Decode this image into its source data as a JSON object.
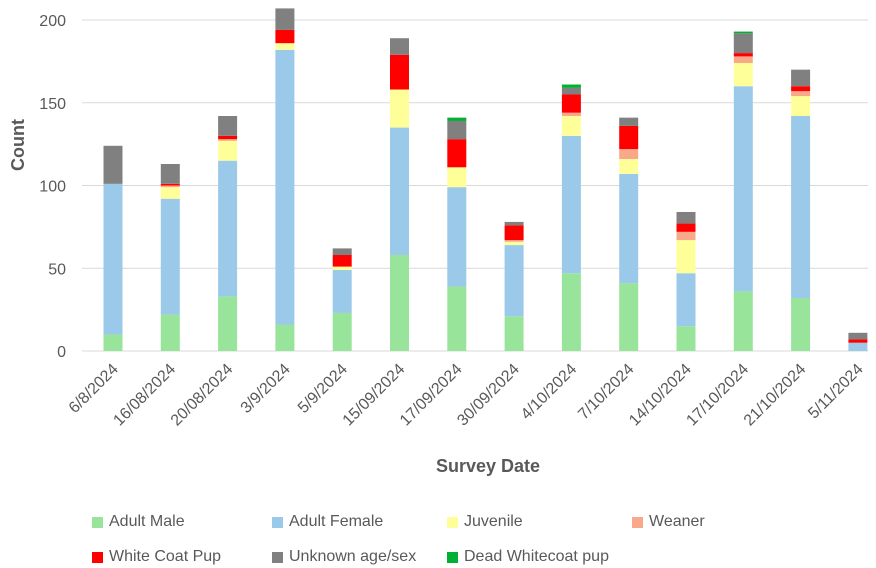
{
  "chart_data": {
    "type": "bar",
    "stacked": true,
    "xlabel": "Survey Date",
    "ylabel": "Count",
    "ylim": [
      0,
      200
    ],
    "yticks": [
      0,
      50,
      100,
      150,
      200
    ],
    "grid": true,
    "legend_position": "bottom",
    "categories": [
      "6/8/2024",
      "16/08/2024",
      "20/08/2024",
      "3/9/2024",
      "5/9/2024",
      "15/09/2024",
      "17/09/2024",
      "30/09/2024",
      "4/10/2024",
      "7/10/2024",
      "14/10/2024",
      "17/10/2024",
      "21/10/2024",
      "5/11/2024"
    ],
    "series": [
      {
        "name": "Adult Male",
        "color": "#98e49a",
        "values": [
          10,
          22,
          33,
          16,
          23,
          58,
          39,
          21,
          47,
          41,
          15,
          36,
          32,
          0
        ]
      },
      {
        "name": "Adult Female",
        "color": "#9bc9ea",
        "values": [
          91,
          70,
          82,
          166,
          26,
          77,
          60,
          43,
          83,
          66,
          32,
          124,
          110,
          5
        ]
      },
      {
        "name": "Juvenile",
        "color": "#ffff99",
        "values": [
          0,
          7,
          12,
          4,
          2,
          23,
          12,
          2,
          12,
          9,
          20,
          14,
          12,
          0
        ]
      },
      {
        "name": "Weaner",
        "color": "#f8a98a",
        "values": [
          0,
          1,
          1,
          0,
          0,
          0,
          0,
          1,
          2,
          6,
          5,
          4,
          3,
          0
        ]
      },
      {
        "name": "White Coat Pup",
        "color": "#ff0000",
        "values": [
          0,
          1,
          2,
          8,
          7,
          21,
          17,
          9,
          11,
          14,
          5,
          2,
          3,
          2
        ]
      },
      {
        "name": "Unknown age/sex",
        "color": "#808080",
        "values": [
          23,
          12,
          12,
          13,
          4,
          10,
          11,
          2,
          4,
          5,
          7,
          12,
          10,
          4
        ]
      },
      {
        "name": "Dead Whitecoat pup",
        "color": "#00b030",
        "values": [
          0,
          0,
          0,
          0,
          0,
          0,
          2,
          0,
          2,
          0,
          0,
          1,
          0,
          0
        ]
      }
    ]
  }
}
